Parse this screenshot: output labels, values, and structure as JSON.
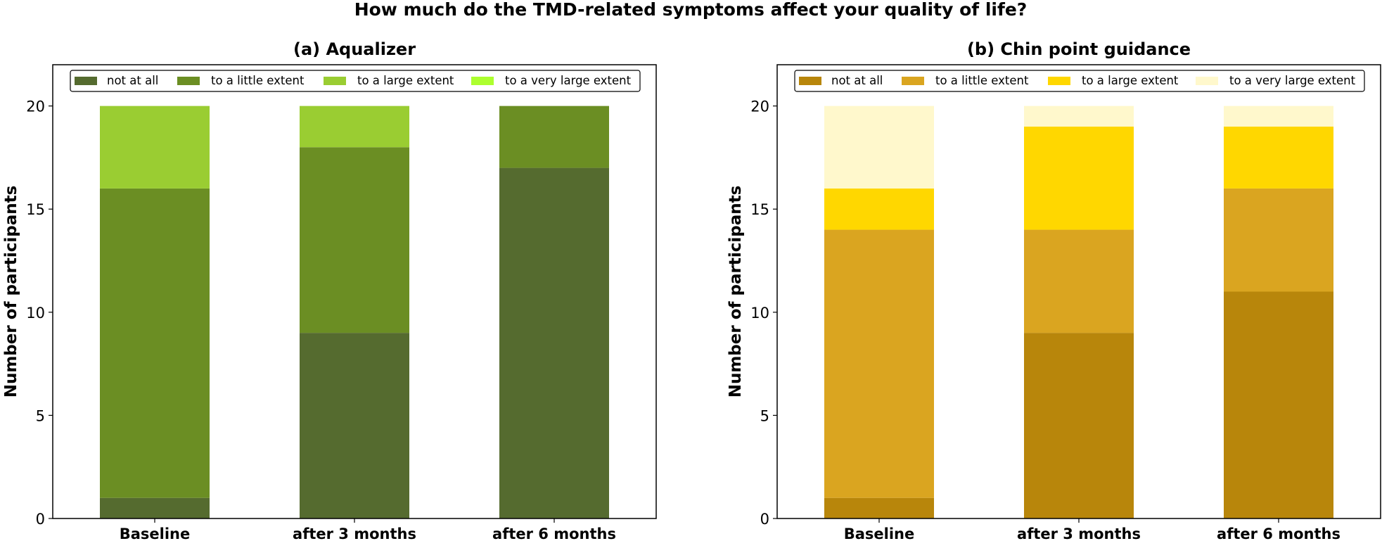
{
  "figure": {
    "suptitle": "How much do the TMD-related symptoms affect your quality of life?"
  },
  "chart_data": [
    {
      "type": "bar",
      "stacked": true,
      "title": "(a) Aqualizer",
      "xlabel": "",
      "ylabel": "Number of participants",
      "categories": [
        "Baseline",
        "after 3 months",
        "after 6 months"
      ],
      "ylim": [
        0,
        22
      ],
      "yticks": [
        0,
        5,
        10,
        15,
        20
      ],
      "legend_position": "top",
      "series": [
        {
          "name": "not at all",
          "color": "#556b2f",
          "values": [
            1,
            9,
            17
          ]
        },
        {
          "name": "to a little extent",
          "color": "#6b8e23",
          "values": [
            15,
            9,
            3
          ]
        },
        {
          "name": "to a large extent",
          "color": "#9acd32",
          "values": [
            4,
            2,
            0
          ]
        },
        {
          "name": "to a very large extent",
          "color": "#adff2f",
          "values": [
            0,
            0,
            0
          ]
        }
      ]
    },
    {
      "type": "bar",
      "stacked": true,
      "title": "(b) Chin point guidance",
      "xlabel": "",
      "ylabel": "Number of participants",
      "categories": [
        "Baseline",
        "after 3 months",
        "after 6 months"
      ],
      "ylim": [
        0,
        22
      ],
      "yticks": [
        0,
        5,
        10,
        15,
        20
      ],
      "legend_position": "top",
      "series": [
        {
          "name": "not at all",
          "color": "#b8860b",
          "values": [
            1,
            9,
            11
          ]
        },
        {
          "name": "to a little extent",
          "color": "#daa520",
          "values": [
            13,
            5,
            5
          ]
        },
        {
          "name": "to a large extent",
          "color": "#ffd700",
          "values": [
            2,
            5,
            3
          ]
        },
        {
          "name": "to a very large extent",
          "color": "#fff8cc",
          "values": [
            4,
            1,
            1
          ]
        }
      ]
    }
  ]
}
